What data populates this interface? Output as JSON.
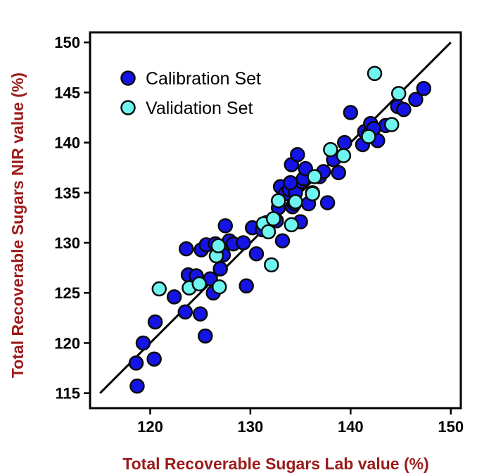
{
  "colors": {
    "calibration": "#1414e6",
    "validation": "#6ff5f0",
    "marker_edge": "#0a0a0a",
    "axis_title": "#9b1b1b"
  },
  "chart_data": {
    "type": "scatter",
    "xlabel": "Total Recoverable Sugars Lab value (%)",
    "ylabel": "Total Recoverable Sugars NIR value (%)",
    "xlim": [
      114,
      151
    ],
    "ylim": [
      113.5,
      151
    ],
    "xticks": [
      120,
      130,
      140,
      150
    ],
    "yticks": [
      115,
      120,
      125,
      130,
      135,
      140,
      145,
      150
    ],
    "grid": false,
    "legend_position": "top-left",
    "reference_line": {
      "from": [
        115,
        115
      ],
      "to": [
        150,
        150
      ]
    },
    "series": [
      {
        "name": "Calibration Set",
        "color": "#1414e6",
        "points": [
          [
            118.7,
            115.7
          ],
          [
            118.6,
            118.0
          ],
          [
            119.3,
            120.0
          ],
          [
            120.4,
            118.4
          ],
          [
            120.5,
            122.1
          ],
          [
            122.4,
            124.6
          ],
          [
            123.5,
            123.1
          ],
          [
            123.6,
            129.4
          ],
          [
            123.8,
            126.8
          ],
          [
            124.6,
            126.7
          ],
          [
            125.0,
            122.9
          ],
          [
            125.1,
            129.3
          ],
          [
            125.5,
            120.7
          ],
          [
            125.6,
            129.8
          ],
          [
            126.0,
            126.4
          ],
          [
            126.3,
            125.0
          ],
          [
            126.5,
            129.9
          ],
          [
            127.0,
            127.4
          ],
          [
            127.3,
            128.8
          ],
          [
            127.5,
            131.7
          ],
          [
            127.9,
            130.2
          ],
          [
            128.3,
            129.9
          ],
          [
            129.3,
            130.0
          ],
          [
            129.6,
            125.7
          ],
          [
            130.2,
            131.5
          ],
          [
            130.6,
            128.9
          ],
          [
            131.2,
            131.3
          ],
          [
            132.6,
            132.2
          ],
          [
            132.8,
            133.5
          ],
          [
            133.0,
            135.6
          ],
          [
            133.2,
            130.2
          ],
          [
            133.5,
            134.9
          ],
          [
            133.9,
            135.3
          ],
          [
            134.1,
            137.8
          ],
          [
            134.2,
            133.6
          ],
          [
            134.4,
            133.9
          ],
          [
            134.5,
            135.0
          ],
          [
            134.7,
            138.8
          ],
          [
            135.0,
            132.1
          ],
          [
            135.1,
            136.1
          ],
          [
            135.3,
            136.4
          ],
          [
            135.5,
            137.4
          ],
          [
            135.8,
            133.9
          ],
          [
            136.2,
            135.0
          ],
          [
            136.9,
            136.6
          ],
          [
            137.3,
            137.1
          ],
          [
            137.7,
            134.0
          ],
          [
            138.3,
            138.3
          ],
          [
            138.8,
            137.0
          ],
          [
            139.4,
            140.0
          ],
          [
            140.0,
            143.0
          ],
          [
            141.2,
            139.8
          ],
          [
            141.4,
            141.1
          ],
          [
            141.8,
            140.8
          ],
          [
            142.0,
            141.9
          ],
          [
            142.7,
            140.2
          ],
          [
            143.5,
            141.7
          ],
          [
            144.7,
            143.6
          ],
          [
            145.3,
            143.3
          ],
          [
            146.5,
            144.3
          ],
          [
            147.3,
            145.4
          ],
          [
            142.3,
            141.4
          ],
          [
            134.0,
            136.0
          ],
          [
            131.6,
            132.0
          ]
        ]
      },
      {
        "name": "Validation Set",
        "color": "#6ff5f0",
        "points": [
          [
            120.9,
            125.4
          ],
          [
            123.9,
            125.5
          ],
          [
            124.9,
            125.9
          ],
          [
            126.6,
            128.7
          ],
          [
            126.8,
            129.7
          ],
          [
            126.9,
            125.6
          ],
          [
            131.3,
            131.9
          ],
          [
            131.8,
            131.1
          ],
          [
            132.1,
            127.8
          ],
          [
            132.3,
            132.4
          ],
          [
            132.8,
            134.2
          ],
          [
            134.1,
            131.8
          ],
          [
            134.5,
            134.1
          ],
          [
            136.2,
            134.9
          ],
          [
            136.4,
            136.6
          ],
          [
            138.0,
            139.3
          ],
          [
            139.3,
            138.7
          ],
          [
            141.8,
            140.6
          ],
          [
            142.4,
            146.9
          ],
          [
            144.1,
            141.8
          ],
          [
            144.8,
            144.9
          ]
        ]
      }
    ]
  }
}
